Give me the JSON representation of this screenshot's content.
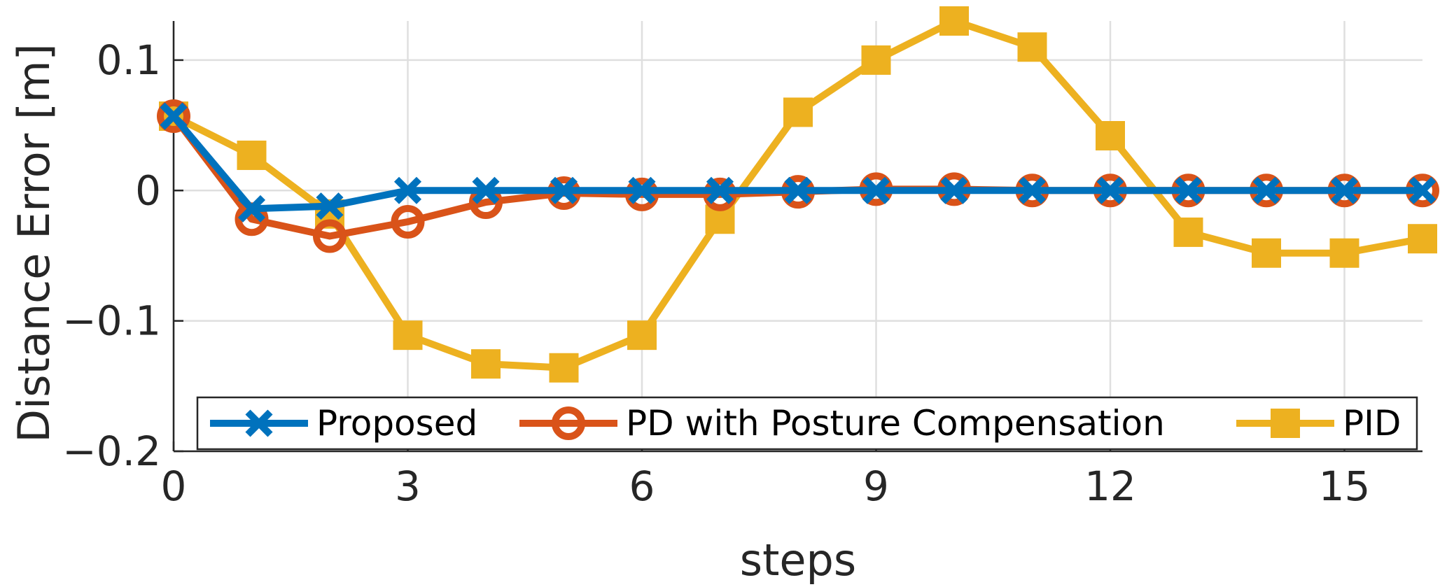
{
  "chart_data": {
    "type": "line",
    "title": "",
    "xlabel": "steps",
    "ylabel": "Distance Error [m]",
    "xlim": [
      0,
      16
    ],
    "ylim": [
      -0.2,
      0.13
    ],
    "xticks": [
      0,
      3,
      6,
      9,
      12,
      15
    ],
    "xtick_labels": [
      "0",
      "3",
      "6",
      "9",
      "12",
      "15"
    ],
    "yticks": [
      -0.2,
      -0.1,
      0,
      0.1
    ],
    "ytick_labels": [
      "−0.2",
      "−0.1",
      "0",
      "0.1"
    ],
    "grid": true,
    "legend_position": "bottom",
    "x": [
      0,
      1,
      2,
      3,
      4,
      5,
      6,
      7,
      8,
      9,
      10,
      11,
      12,
      13,
      14,
      15,
      16
    ],
    "series": [
      {
        "name": "Proposed",
        "color": "#0072BD",
        "marker": "x",
        "values": [
          0.057,
          -0.014,
          -0.012,
          0.0,
          0.0,
          0.0,
          0.0,
          0.0,
          0.0,
          0.0,
          0.0,
          0.0,
          0.0,
          0.0,
          0.0,
          0.0,
          0.0
        ]
      },
      {
        "name": "PD with Posture Compensation",
        "color": "#D95319",
        "marker": "circle",
        "values": [
          0.057,
          -0.022,
          -0.035,
          -0.024,
          -0.009,
          -0.002,
          -0.003,
          -0.003,
          -0.001,
          0.001,
          0.001,
          0.0,
          0.0,
          0.0,
          0.0,
          0.0,
          0.0
        ]
      },
      {
        "name": "PID",
        "color": "#EDB120",
        "marker": "square",
        "values": [
          0.057,
          0.027,
          -0.018,
          -0.111,
          -0.133,
          -0.136,
          -0.111,
          -0.022,
          0.06,
          0.1,
          0.13,
          0.11,
          0.042,
          -0.032,
          -0.048,
          -0.048,
          -0.037
        ]
      }
    ]
  }
}
